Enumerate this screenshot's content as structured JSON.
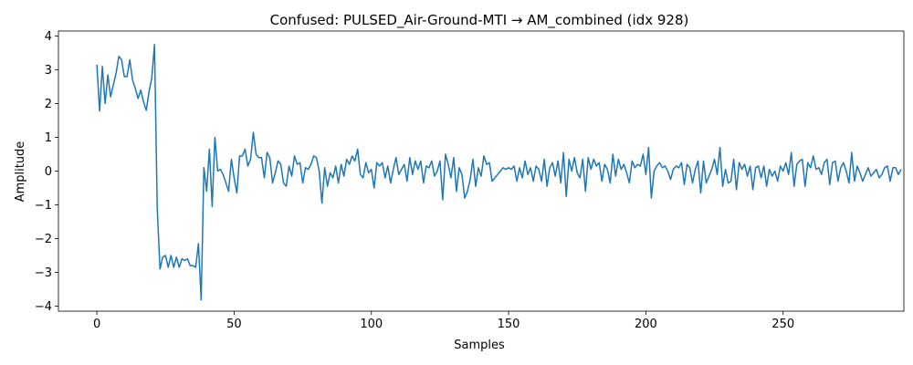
{
  "chart_data": {
    "type": "line",
    "title": "Confused: PULSED_Air-Ground-MTI → AM_combined (idx 928)",
    "xlabel": "Samples",
    "ylabel": "Amplitude",
    "xlim": [
      -14,
      294
    ],
    "ylim": [
      -4.15,
      4.15
    ],
    "xticks": [
      0,
      50,
      100,
      150,
      200,
      250
    ],
    "yticks": [
      -4,
      -3,
      -2,
      -1,
      0,
      1,
      2,
      3,
      4
    ],
    "grid": false,
    "legend": false,
    "series": [
      {
        "color": "#1f77b4",
        "x_start": 0,
        "x_step": 1,
        "values": [
          3.15,
          1.78,
          3.1,
          2.0,
          2.85,
          2.2,
          2.55,
          2.9,
          3.4,
          3.3,
          2.8,
          2.8,
          3.3,
          2.7,
          2.45,
          2.15,
          2.4,
          2.05,
          1.8,
          2.35,
          2.75,
          3.75,
          -1.1,
          -2.9,
          -2.55,
          -2.5,
          -2.85,
          -2.5,
          -2.85,
          -2.55,
          -2.85,
          -2.6,
          -2.65,
          -2.6,
          -2.8,
          -2.8,
          -2.85,
          -2.15,
          -3.82,
          0.1,
          -0.6,
          0.65,
          -1.05,
          1.0,
          0.0,
          0.05,
          -0.1,
          -0.35,
          -0.6,
          0.35,
          -0.2,
          -0.65,
          0.45,
          0.45,
          0.65,
          0.15,
          0.35,
          1.15,
          0.5,
          0.4,
          0.4,
          -0.2,
          0.55,
          0.4,
          -0.35,
          -0.05,
          0.3,
          0.2,
          -0.35,
          -0.45,
          0.15,
          -0.15,
          0.45,
          0.2,
          0.25,
          -0.35,
          0.1,
          0.05,
          0.2,
          0.45,
          0.4,
          0.0,
          -0.95,
          0.1,
          -0.45,
          -0.05,
          -0.2,
          0.15,
          -0.35,
          0.2,
          -0.15,
          0.35,
          0.2,
          0.45,
          0.3,
          0.65,
          -0.1,
          -0.2,
          0.25,
          -0.05,
          0.05,
          -0.5,
          0.25,
          0.15,
          0.25,
          -0.2,
          0.15,
          -0.35,
          0.05,
          0.4,
          -0.1,
          0.05,
          0.2,
          -0.3,
          0.4,
          -0.1,
          0.3,
          0.05,
          0.3,
          -0.35,
          0.15,
          0.1,
          0.3,
          -0.15,
          0.0,
          0.3,
          -0.85,
          0.5,
          0.2,
          -0.2,
          0.4,
          -0.6,
          0.1,
          -0.1,
          -0.8,
          -0.6,
          -0.25,
          0.35,
          -0.45,
          0.1,
          -0.15,
          0.45,
          0.2,
          0.25,
          -0.3,
          -0.2,
          -0.1,
          0.0,
          0.1,
          0.05,
          0.1,
          0.05,
          0.15,
          -0.3,
          0.1,
          -0.2,
          0.3,
          -0.1,
          0.1,
          -0.3,
          0.15,
          0.05,
          -0.3,
          0.35,
          -0.45,
          0.1,
          0.25,
          -0.15,
          0.3,
          -0.35,
          0.55,
          -0.75,
          0.35,
          0.0,
          0.4,
          -0.05,
          -0.2,
          0.35,
          -0.6,
          0.4,
          0.05,
          0.35,
          0.15,
          0.25,
          -0.3,
          0.2,
          0.05,
          -0.35,
          0.5,
          -0.15,
          0.35,
          0.05,
          0.2,
          -0.05,
          -0.35,
          0.3,
          0.1,
          0.2,
          0.15,
          0.5,
          -0.1,
          0.7,
          -0.8,
          0.0,
          0.15,
          0.25,
          0.1,
          0.15,
          0.0,
          -0.25,
          0.05,
          0.15,
          0.1,
          0.25,
          -0.4,
          0.2,
          0.1,
          -0.35,
          0.05,
          0.3,
          -0.65,
          0.3,
          -0.35,
          -0.15,
          0.05,
          0.35,
          -0.1,
          0.7,
          -0.45,
          0.05,
          -0.35,
          -0.3,
          0.35,
          -0.55,
          0.25,
          0.05,
          0.2,
          -0.15,
          0.15,
          -0.55,
          0.1,
          0.15,
          -0.2,
          0.15,
          -0.45,
          0.05,
          -0.15,
          0.0,
          -0.3,
          0.15,
          0.0,
          0.25,
          -0.1,
          0.55,
          -0.45,
          0.2,
          0.3,
          0.35,
          -0.45,
          0.25,
          0.1,
          0.45,
          0.05,
          0.1,
          -0.1,
          0.25,
          0.35,
          -0.4,
          0.25,
          0.3,
          -0.3,
          0.1,
          0.25,
          0.0,
          -0.35,
          0.55,
          -0.3,
          0.15,
          -0.05,
          -0.3,
          -0.1,
          0.1,
          -0.15,
          -0.05,
          0.05,
          -0.2,
          -0.1,
          0.1,
          0.15,
          -0.3,
          0.1,
          0.1,
          -0.1,
          0.05
        ]
      }
    ]
  }
}
